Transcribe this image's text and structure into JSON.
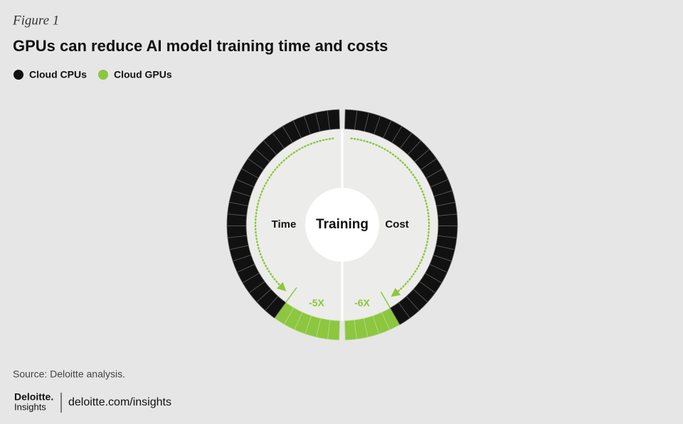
{
  "figure_label": "Figure 1",
  "title": "GPUs can reduce AI model training time and costs",
  "chart_data": {
    "type": "ring",
    "center_label": "Training",
    "categories": [
      "Time",
      "Cost"
    ],
    "series": [
      {
        "name": "Cloud CPUs",
        "color": "#111111"
      },
      {
        "name": "Cloud GPUs",
        "color": "#8dc63f",
        "values": [
          -5,
          -6
        ],
        "value_labels": [
          "-5X",
          "-6X"
        ]
      }
    ]
  },
  "source": "Source: Deloitte analysis.",
  "logo": {
    "line1": "Deloitte.",
    "line2": "Insights"
  },
  "url": "deloitte.com/insights"
}
